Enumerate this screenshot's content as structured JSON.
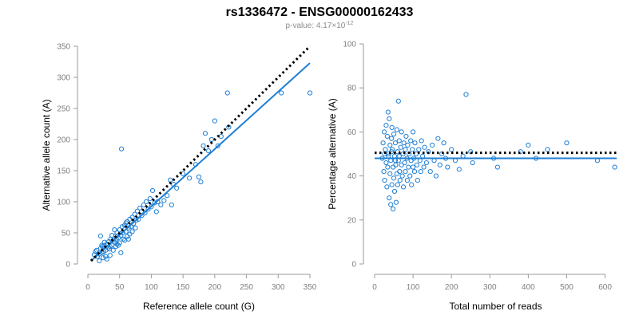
{
  "title": "rs1336472 - ENSG00000162433",
  "subtitle": {
    "prefix": "p-value: 4.17×10",
    "exponent": "-12"
  },
  "colors": {
    "points": "#1f7fd4",
    "fit": "#1f7fd4",
    "reference": "#000000",
    "axis": "#9a9a9a"
  },
  "chart_data": [
    {
      "type": "scatter",
      "xlabel": "Reference allele count (G)",
      "ylabel": "Alternative allele count (A)",
      "xlim": [
        0,
        350
      ],
      "ylim": [
        0,
        350
      ],
      "xticks": [
        0,
        50,
        100,
        150,
        200,
        250,
        300,
        350
      ],
      "yticks": [
        0,
        50,
        100,
        150,
        200,
        250,
        300,
        350
      ],
      "fit_line": {
        "x": [
          5,
          350
        ],
        "y": [
          5,
          323
        ],
        "style": "solid"
      },
      "reference_line": {
        "x": [
          5,
          350
        ],
        "y": [
          5,
          350
        ],
        "style": "dotted"
      },
      "points": [
        [
          10,
          15
        ],
        [
          12,
          20
        ],
        [
          14,
          22
        ],
        [
          15,
          12
        ],
        [
          18,
          16
        ],
        [
          20,
          25
        ],
        [
          22,
          18
        ],
        [
          23,
          28
        ],
        [
          25,
          20
        ],
        [
          26,
          30
        ],
        [
          28,
          22
        ],
        [
          30,
          32
        ],
        [
          32,
          26
        ],
        [
          33,
          36
        ],
        [
          35,
          28
        ],
        [
          36,
          40
        ],
        [
          38,
          30
        ],
        [
          40,
          38
        ],
        [
          42,
          35
        ],
        [
          44,
          45
        ],
        [
          45,
          40
        ],
        [
          46,
          50
        ],
        [
          48,
          42
        ],
        [
          50,
          55
        ],
        [
          52,
          46
        ],
        [
          54,
          60
        ],
        [
          55,
          50
        ],
        [
          56,
          40
        ],
        [
          58,
          62
        ],
        [
          60,
          52
        ],
        [
          62,
          68
        ],
        [
          64,
          58
        ],
        [
          66,
          72
        ],
        [
          68,
          60
        ],
        [
          70,
          75
        ],
        [
          72,
          65
        ],
        [
          74,
          80
        ],
        [
          76,
          70
        ],
        [
          78,
          85
        ],
        [
          80,
          72
        ],
        [
          82,
          90
        ],
        [
          85,
          78
        ],
        [
          88,
          95
        ],
        [
          90,
          82
        ],
        [
          92,
          100
        ],
        [
          95,
          88
        ],
        [
          98,
          105
        ],
        [
          100,
          92
        ],
        [
          102,
          118
        ],
        [
          105,
          98
        ],
        [
          108,
          84
        ],
        [
          110,
          100
        ],
        [
          115,
          95
        ],
        [
          120,
          102
        ],
        [
          125,
          110
        ],
        [
          130,
          135
        ],
        [
          132,
          95
        ],
        [
          135,
          128
        ],
        [
          140,
          122
        ],
        [
          150,
          145
        ],
        [
          160,
          138
        ],
        [
          170,
          160
        ],
        [
          175,
          140
        ],
        [
          178,
          132
        ],
        [
          182,
          190
        ],
        [
          185,
          210
        ],
        [
          190,
          182
        ],
        [
          195,
          200
        ],
        [
          200,
          230
        ],
        [
          205,
          190
        ],
        [
          210,
          205
        ],
        [
          220,
          275
        ],
        [
          222,
          220
        ],
        [
          305,
          275
        ],
        [
          350,
          275
        ],
        [
          53,
          185
        ],
        [
          20,
          45
        ],
        [
          24,
          10
        ],
        [
          30,
          8
        ],
        [
          35,
          14
        ],
        [
          40,
          22
        ],
        [
          44,
          28
        ],
        [
          48,
          30
        ],
        [
          50,
          34
        ],
        [
          52,
          18
        ],
        [
          58,
          38
        ],
        [
          62,
          44
        ],
        [
          66,
          48
        ],
        [
          70,
          52
        ],
        [
          75,
          58
        ],
        [
          18,
          5
        ],
        [
          22,
          30
        ],
        [
          26,
          35
        ],
        [
          28,
          12
        ],
        [
          34,
          24
        ],
        [
          38,
          46
        ],
        [
          42,
          55
        ],
        [
          46,
          32
        ],
        [
          60,
          66
        ],
        [
          64,
          40
        ]
      ]
    },
    {
      "type": "scatter",
      "xlabel": "Total number of reads",
      "ylabel": "Percentage alternative (A)",
      "xlim": [
        0,
        630
      ],
      "ylim": [
        0,
        100
      ],
      "xticks": [
        0,
        100,
        200,
        300,
        400,
        500,
        600
      ],
      "yticks": [
        0,
        20,
        40,
        60,
        80,
        100
      ],
      "fit_line": {
        "x": [
          0,
          630
        ],
        "y": [
          48,
          48
        ],
        "style": "solid"
      },
      "reference_line": {
        "x": [
          0,
          630
        ],
        "y": [
          50.5,
          50.5
        ],
        "style": "dotted"
      },
      "points": [
        [
          20,
          48
        ],
        [
          22,
          55
        ],
        [
          24,
          42
        ],
        [
          25,
          60
        ],
        [
          26,
          38
        ],
        [
          28,
          52
        ],
        [
          30,
          46
        ],
        [
          30,
          63
        ],
        [
          32,
          35
        ],
        [
          33,
          58
        ],
        [
          34,
          44
        ],
        [
          35,
          69
        ],
        [
          36,
          50
        ],
        [
          38,
          30
        ],
        [
          38,
          66
        ],
        [
          40,
          54
        ],
        [
          40,
          41
        ],
        [
          42,
          47
        ],
        [
          42,
          27
        ],
        [
          44,
          57
        ],
        [
          45,
          36
        ],
        [
          45,
          62
        ],
        [
          46,
          52
        ],
        [
          48,
          25
        ],
        [
          48,
          44
        ],
        [
          50,
          59
        ],
        [
          50,
          39
        ],
        [
          52,
          49
        ],
        [
          52,
          33
        ],
        [
          54,
          55
        ],
        [
          55,
          45
        ],
        [
          56,
          28
        ],
        [
          58,
          61
        ],
        [
          58,
          41
        ],
        [
          60,
          51
        ],
        [
          60,
          36
        ],
        [
          62,
          74
        ],
        [
          62,
          47
        ],
        [
          64,
          56
        ],
        [
          65,
          42
        ],
        [
          66,
          38
        ],
        [
          68,
          53
        ],
        [
          70,
          45
        ],
        [
          70,
          60
        ],
        [
          72,
          40
        ],
        [
          74,
          50
        ],
        [
          75,
          35
        ],
        [
          76,
          55
        ],
        [
          78,
          46
        ],
        [
          80,
          52
        ],
        [
          80,
          42
        ],
        [
          82,
          58
        ],
        [
          84,
          48
        ],
        [
          85,
          38
        ],
        [
          86,
          54
        ],
        [
          88,
          44
        ],
        [
          90,
          50
        ],
        [
          92,
          40
        ],
        [
          94,
          56
        ],
        [
          95,
          47
        ],
        [
          96,
          36
        ],
        [
          98,
          52
        ],
        [
          100,
          44
        ],
        [
          100,
          60
        ],
        [
          102,
          48
        ],
        [
          104,
          42
        ],
        [
          105,
          55
        ],
        [
          108,
          50
        ],
        [
          110,
          45
        ],
        [
          112,
          38
        ],
        [
          115,
          52
        ],
        [
          118,
          47
        ],
        [
          120,
          42
        ],
        [
          122,
          56
        ],
        [
          125,
          49
        ],
        [
          128,
          44
        ],
        [
          130,
          53
        ],
        [
          135,
          46
        ],
        [
          140,
          51
        ],
        [
          145,
          42
        ],
        [
          150,
          54
        ],
        [
          155,
          47
        ],
        [
          160,
          40
        ],
        [
          165,
          57
        ],
        [
          170,
          45
        ],
        [
          175,
          50
        ],
        [
          180,
          55
        ],
        [
          185,
          48
        ],
        [
          190,
          44
        ],
        [
          200,
          52
        ],
        [
          210,
          47
        ],
        [
          220,
          43
        ],
        [
          230,
          49
        ],
        [
          238,
          77
        ],
        [
          250,
          51
        ],
        [
          255,
          46
        ],
        [
          310,
          48
        ],
        [
          320,
          44
        ],
        [
          380,
          51
        ],
        [
          400,
          54
        ],
        [
          420,
          48
        ],
        [
          450,
          52
        ],
        [
          500,
          55
        ],
        [
          580,
          47
        ],
        [
          625,
          44
        ],
        [
          26,
          50
        ],
        [
          36,
          49
        ],
        [
          44,
          51
        ],
        [
          54,
          47
        ],
        [
          64,
          49
        ]
      ]
    }
  ]
}
